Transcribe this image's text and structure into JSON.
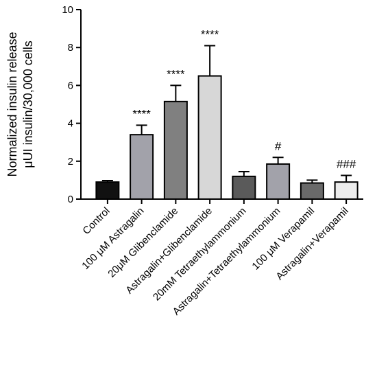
{
  "chart_data": {
    "type": "bar",
    "ylabel_lines": [
      "Normalized insulin release",
      "μUI insulin/30,000 cells"
    ],
    "xlabel": "",
    "ylim": [
      0,
      10
    ],
    "yticks": [
      0,
      2,
      4,
      6,
      8,
      10
    ],
    "grid": false,
    "categories": [
      "Control",
      "100 μM Astragalin",
      "20μM Glibenclamide",
      "Astragalin+Glibenclamide",
      "20mM Tetraethylammonium",
      "Astragalin+Tetraethylammonium",
      "100 μM Verapamil",
      "Astragalin+Verapamil"
    ],
    "values": [
      0.9,
      3.4,
      5.15,
      6.5,
      1.2,
      1.85,
      0.85,
      0.9
    ],
    "errors": [
      0.08,
      0.5,
      0.85,
      1.6,
      0.25,
      0.35,
      0.15,
      0.35
    ],
    "bar_colors": [
      "#111111",
      "#a2a2aa",
      "#808080",
      "#d7d7d7",
      "#5a5a5a",
      "#a2a2aa",
      "#6a6a6a",
      "#ececec"
    ],
    "annotations": [
      "",
      "****",
      "****",
      "****",
      "",
      "#",
      "",
      "###"
    ]
  }
}
